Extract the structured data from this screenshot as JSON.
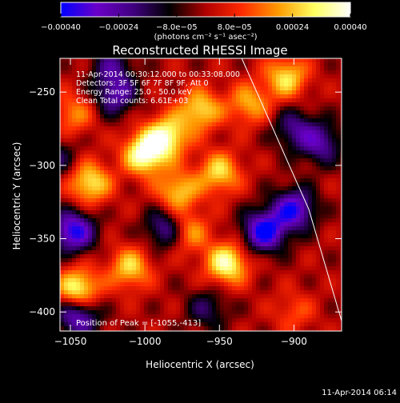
{
  "colorbar": {
    "ticks": [
      {
        "value": -0.0004,
        "label": "-0.00040"
      },
      {
        "value": -0.00024,
        "label": "-0.00024"
      },
      {
        "value": -8e-05,
        "label": "-8.0e-05"
      },
      {
        "value": 8e-05,
        "label": "8.0e-05"
      },
      {
        "value": 0.00024,
        "label": "0.00024"
      },
      {
        "value": 0.0004,
        "label": "0.00040"
      }
    ],
    "range": [
      -0.0004,
      0.0004
    ],
    "unit_label": "(photons cm⁻² s⁻¹ asec⁻²)",
    "colors": [
      "#0000ff",
      "#6a00c8",
      "#400080",
      "#000000",
      "#b00000",
      "#ff2a00",
      "#ff9a00",
      "#ffff60",
      "#ffffff"
    ]
  },
  "chart_data": {
    "type": "heatmap",
    "title": "Reconstructed RHESSI Image",
    "xlabel": "Heliocentric X (arcsec)",
    "ylabel": "Heliocentric Y (arcsec)",
    "xlim": [
      -1057,
      -868
    ],
    "ylim": [
      -413,
      -227
    ],
    "xticks": [
      {
        "value": -1050,
        "label": "-1050"
      },
      {
        "value": -1000,
        "label": "-1000"
      },
      {
        "value": -950,
        "label": "-950"
      },
      {
        "value": -900,
        "label": "-900"
      }
    ],
    "yticks": [
      {
        "value": -250,
        "label": "-250"
      },
      {
        "value": -300,
        "label": "-300"
      },
      {
        "value": -350,
        "label": "-350"
      },
      {
        "value": -400,
        "label": "-400"
      }
    ],
    "limb": [
      [
        -935,
        -227
      ],
      [
        -890,
        -330
      ],
      [
        -866,
        -413
      ]
    ],
    "annotations": [
      "11-Apr-2014 00:30:12.000 to 00:33:08.000",
      "Detectors: 3F 5F 6F 7F 8F 9F, Att 0",
      "Energy Range: 25.0 - 50.0 keV",
      "Clean     Total counts: 6.61E+03"
    ],
    "peak_label": "Position of Peak = [-1055,-413]",
    "sources": [
      {
        "x": -1000,
        "y": -292,
        "amplitude": 0.0004
      },
      {
        "x": -985,
        "y": -280,
        "amplitude": 0.00033
      },
      {
        "x": -963,
        "y": -262,
        "amplitude": 0.00028
      },
      {
        "x": -978,
        "y": -318,
        "amplitude": 0.00026
      },
      {
        "x": -972,
        "y": -345,
        "amplitude": 0.00024
      },
      {
        "x": -1037,
        "y": -312,
        "amplitude": 0.0003
      },
      {
        "x": -1048,
        "y": -265,
        "amplitude": 0.00018
      },
      {
        "x": -1045,
        "y": -385,
        "amplitude": 0.00037
      },
      {
        "x": -1010,
        "y": -370,
        "amplitude": 0.00026
      },
      {
        "x": -945,
        "y": -367,
        "amplitude": 0.00035
      },
      {
        "x": -950,
        "y": -305,
        "amplitude": 0.00027
      },
      {
        "x": -905,
        "y": -240,
        "amplitude": 0.00028
      },
      {
        "x": -930,
        "y": -258,
        "amplitude": 0.00022
      },
      {
        "x": -900,
        "y": -400,
        "amplitude": 0.00012
      },
      {
        "x": -920,
        "y": -345,
        "amplitude": -0.0004
      },
      {
        "x": -900,
        "y": -330,
        "amplitude": -0.00035
      },
      {
        "x": -1048,
        "y": -345,
        "amplitude": -0.00038
      },
      {
        "x": -1045,
        "y": -402,
        "amplitude": -0.00033
      },
      {
        "x": -1020,
        "y": -252,
        "amplitude": -0.00025
      },
      {
        "x": -985,
        "y": -343,
        "amplitude": -0.00028
      },
      {
        "x": -882,
        "y": -285,
        "amplitude": -0.00024
      },
      {
        "x": -900,
        "y": -275,
        "amplitude": -0.0002
      },
      {
        "x": -1022,
        "y": -232,
        "amplitude": -0.00018
      },
      {
        "x": -1060,
        "y": -295,
        "amplitude": -0.00016
      },
      {
        "x": -958,
        "y": -398,
        "amplitude": -0.00016
      }
    ]
  },
  "footer": {
    "timestamp": "11-Apr-2014 06:14"
  }
}
